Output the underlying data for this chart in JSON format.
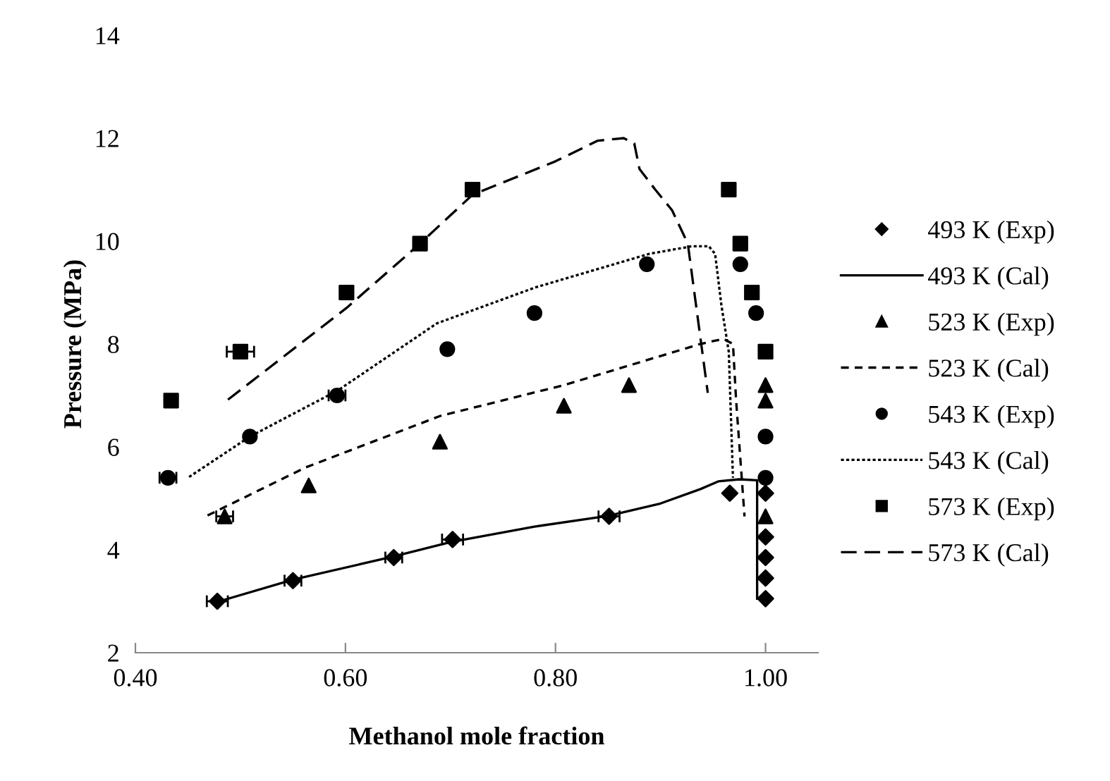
{
  "chart_data": {
    "type": "scatter",
    "xlabel": "Methanol mole fraction",
    "ylabel": "Pressure (MPa)",
    "xlim": [
      0.4,
      1.05
    ],
    "xticks": [
      {
        "value": 0.4,
        "label": "0.40"
      },
      {
        "value": 0.6,
        "label": "0.60"
      },
      {
        "value": 0.8,
        "label": "0.80"
      },
      {
        "value": 1.0,
        "label": "1.00"
      }
    ],
    "ylim": [
      2,
      14
    ],
    "yticks": [
      2,
      4,
      6,
      8,
      10,
      12,
      14
    ],
    "grid": false,
    "legend": "right",
    "series": [
      {
        "name": "493 K (Exp)",
        "marker": "diamond",
        "color": "#000000",
        "x": [
          0.478,
          0.55,
          0.646,
          0.702,
          0.851,
          0.966,
          1.0,
          1.0,
          1.0,
          1.0,
          1.0
        ],
        "values": [
          3.0,
          3.4,
          3.85,
          4.2,
          4.65,
          5.1,
          5.1,
          4.25,
          3.85,
          3.45,
          3.05
        ],
        "xerrors": [
          0.01,
          0.008,
          0.008,
          0.01,
          0.01,
          null,
          null,
          null,
          null,
          null,
          null
        ]
      },
      {
        "name": "493 K (Cal)",
        "type": "line",
        "line_style": "solid",
        "color": "#000000",
        "x": [
          0.48,
          0.55,
          0.646,
          0.7,
          0.78,
          0.85,
          0.9,
          0.938,
          0.955,
          0.975,
          0.992,
          0.992
        ],
        "values": [
          3.0,
          3.42,
          3.87,
          4.15,
          4.45,
          4.66,
          4.9,
          5.18,
          5.33,
          5.37,
          5.35,
          3.05
        ]
      },
      {
        "name": "523 K (Exp)",
        "marker": "triangle",
        "color": "#000000",
        "x": [
          0.485,
          0.565,
          0.69,
          0.808,
          0.87,
          1.0,
          1.0,
          1.0
        ],
        "values": [
          4.65,
          5.25,
          6.1,
          6.8,
          7.2,
          7.2,
          6.9,
          4.65
        ],
        "xerrors": [
          0.008,
          null,
          null,
          null,
          null,
          null,
          null,
          null
        ]
      },
      {
        "name": "523 K (Cal)",
        "type": "line",
        "line_style": "dashed",
        "color": "#000000",
        "x": [
          0.467,
          0.562,
          0.69,
          0.808,
          0.938,
          0.96,
          0.969,
          0.972,
          0.98
        ],
        "values": [
          4.65,
          5.6,
          6.6,
          7.2,
          8.0,
          8.1,
          8.0,
          6.9,
          4.65
        ]
      },
      {
        "name": "543 K (Exp)",
        "marker": "circle",
        "color": "#000000",
        "x": [
          0.431,
          0.509,
          0.592,
          0.697,
          0.78,
          0.887,
          0.976,
          0.991,
          1.0,
          1.0
        ],
        "values": [
          5.4,
          6.2,
          7.0,
          7.9,
          8.6,
          9.55,
          9.55,
          8.6,
          6.2,
          5.4
        ],
        "xerrors": [
          0.008,
          null,
          0.008,
          null,
          null,
          null,
          null,
          null,
          null,
          null
        ]
      },
      {
        "name": "543 K (Cal)",
        "type": "line",
        "line_style": "dotted",
        "color": "#000000",
        "x": [
          0.45,
          0.509,
          0.593,
          0.687,
          0.781,
          0.889,
          0.93,
          0.946,
          0.952,
          0.958,
          0.965,
          0.969
        ],
        "values": [
          5.4,
          6.2,
          7.1,
          8.4,
          9.1,
          9.75,
          9.9,
          9.9,
          9.75,
          8.75,
          7.85,
          5.4
        ]
      },
      {
        "name": "573 K (Exp)",
        "marker": "square",
        "color": "#000000",
        "x": [
          0.434,
          0.5,
          0.601,
          0.671,
          0.721,
          0.965,
          0.976,
          0.987,
          1.0
        ],
        "values": [
          6.9,
          7.85,
          9.0,
          9.95,
          11.0,
          11.0,
          9.95,
          9.0,
          7.85
        ],
        "xerrors": [
          null,
          0.013,
          null,
          null,
          null,
          null,
          null,
          null,
          null
        ]
      },
      {
        "name": "573 K (Cal)",
        "type": "line",
        "line_style": "dashed",
        "color": "#000000",
        "x": [
          0.487,
          0.601,
          0.671,
          0.721,
          0.8,
          0.84,
          0.865,
          0.875,
          0.88,
          0.895,
          0.911,
          0.926,
          0.945
        ],
        "values": [
          6.9,
          8.7,
          9.95,
          10.9,
          11.55,
          11.95,
          12.0,
          11.9,
          11.4,
          11.0,
          10.6,
          9.95,
          7.05
        ]
      }
    ]
  }
}
